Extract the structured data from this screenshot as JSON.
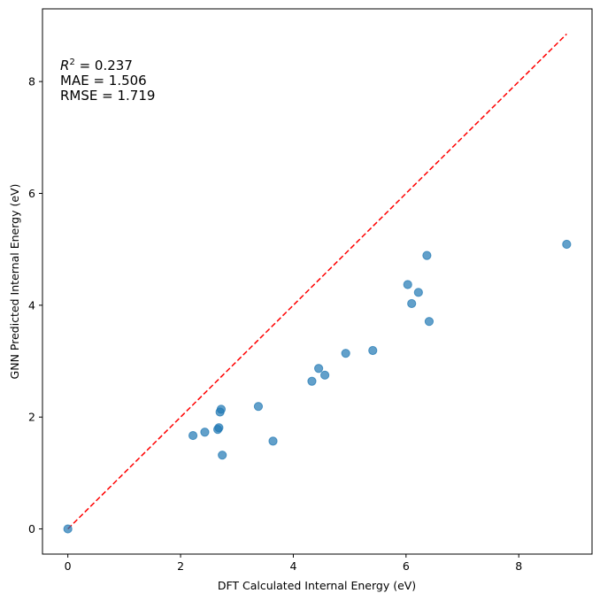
{
  "chart_data": {
    "type": "scatter",
    "xlabel": "DFT Calculated Internal Energy (eV)",
    "ylabel": "GNN Predicted Internal Energy (eV)",
    "xlim": [
      -0.45,
      9.3
    ],
    "ylim": [
      -0.45,
      9.3
    ],
    "xticks": [
      0,
      2,
      4,
      6,
      8
    ],
    "yticks": [
      0,
      2,
      4,
      6,
      8
    ],
    "grid": false,
    "points": [
      {
        "x": 0.0,
        "y": 0.0
      },
      {
        "x": 2.22,
        "y": 1.67
      },
      {
        "x": 2.43,
        "y": 1.73
      },
      {
        "x": 2.66,
        "y": 1.78
      },
      {
        "x": 2.68,
        "y": 1.81
      },
      {
        "x": 2.7,
        "y": 2.09
      },
      {
        "x": 2.72,
        "y": 2.14
      },
      {
        "x": 2.74,
        "y": 1.32
      },
      {
        "x": 3.38,
        "y": 2.19
      },
      {
        "x": 3.64,
        "y": 1.57
      },
      {
        "x": 4.33,
        "y": 2.64
      },
      {
        "x": 4.45,
        "y": 2.87
      },
      {
        "x": 4.56,
        "y": 2.75
      },
      {
        "x": 4.93,
        "y": 3.14
      },
      {
        "x": 5.41,
        "y": 3.19
      },
      {
        "x": 6.03,
        "y": 4.37
      },
      {
        "x": 6.1,
        "y": 4.03
      },
      {
        "x": 6.22,
        "y": 4.23
      },
      {
        "x": 6.37,
        "y": 4.89
      },
      {
        "x": 6.41,
        "y": 3.71
      },
      {
        "x": 8.85,
        "y": 5.09
      }
    ],
    "reference_line": {
      "x": [
        0,
        8.85
      ],
      "y": [
        0,
        8.85
      ],
      "color": "#ff0000",
      "style": "dashed"
    },
    "point_color": "#1f77b4",
    "annotations": [
      {
        "prefix": "R",
        "sup": "2",
        "suffix": " = 0.237"
      },
      {
        "text": "MAE = 1.506"
      },
      {
        "text": "RMSE = 1.719"
      }
    ]
  }
}
